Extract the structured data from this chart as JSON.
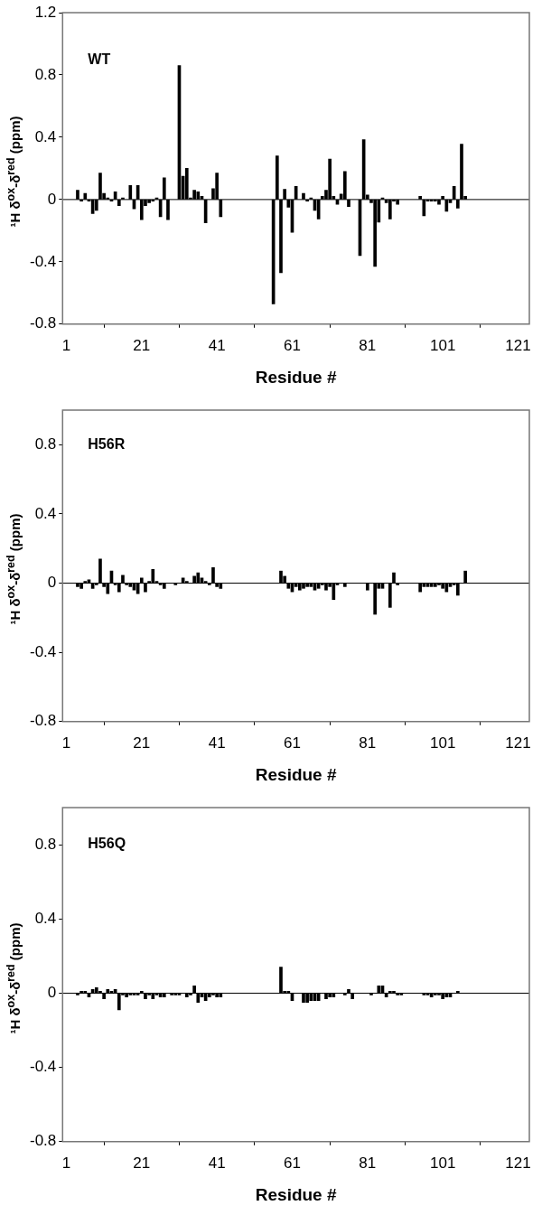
{
  "chart_data": [
    {
      "type": "bar",
      "title": "WT",
      "xlabel": "Residue #",
      "ylabel": "¹H δ$^{ox}$-δ$^{red}$ (ppm)",
      "color": "#000000",
      "grid": false,
      "legend": false,
      "ref_lines": [
        {
          "axis": "y",
          "value": 0,
          "color": "#000000"
        }
      ],
      "xlim": [
        0,
        124
      ],
      "xticks": [
        1,
        21,
        41,
        61,
        81,
        101,
        121
      ],
      "ylim": [
        -0.8,
        1.2
      ],
      "yticks": [
        -0.8,
        -0.4,
        0,
        0.4,
        0.8,
        1.2
      ],
      "x": [
        4,
        5,
        6,
        7,
        8,
        9,
        10,
        11,
        12,
        13,
        14,
        15,
        16,
        18,
        19,
        20,
        21,
        22,
        23,
        24,
        25,
        26,
        27,
        28,
        31,
        32,
        33,
        34,
        35,
        36,
        37,
        38,
        40,
        41,
        42,
        56,
        57,
        58,
        59,
        60,
        61,
        62,
        64,
        65,
        66,
        67,
        68,
        69,
        70,
        71,
        72,
        73,
        74,
        75,
        76,
        79,
        80,
        81,
        82,
        83,
        84,
        85,
        86,
        87,
        88,
        89,
        95,
        96,
        97,
        98,
        99,
        100,
        101,
        102,
        103,
        104,
        105,
        106,
        107
      ],
      "values": [
        0.06,
        -0.01,
        0.04,
        -0.01,
        -0.09,
        -0.07,
        0.17,
        0.04,
        0.01,
        -0.01,
        0.05,
        -0.04,
        0.01,
        0.09,
        -0.06,
        0.09,
        -0.13,
        -0.04,
        -0.02,
        -0.01,
        0.01,
        -0.11,
        0.14,
        -0.13,
        0.86,
        0.15,
        0.2,
        0.01,
        0.06,
        0.05,
        0.02,
        -0.15,
        0.07,
        0.17,
        -0.11,
        -0.67,
        0.28,
        -0.47,
        0.065,
        -0.05,
        -0.21,
        0.085,
        0.04,
        -0.01,
        0.01,
        -0.07,
        -0.125,
        0.02,
        0.06,
        0.26,
        0.02,
        -0.03,
        0.035,
        0.18,
        -0.045,
        -0.36,
        0.385,
        0.03,
        -0.02,
        -0.43,
        -0.145,
        0.01,
        -0.02,
        -0.125,
        -0.01,
        -0.03,
        0.02,
        -0.105,
        -0.01,
        -0.01,
        -0.01,
        -0.03,
        0.02,
        -0.075,
        -0.02,
        0.085,
        -0.055,
        0.355,
        0.02
      ]
    },
    {
      "type": "bar",
      "title": "H56R",
      "xlabel": "Residue #",
      "ylabel": "¹H δ$^{ox}$-δ$^{red}$ (ppm)",
      "color": "#000000",
      "grid": false,
      "legend": false,
      "ref_lines": [
        {
          "axis": "y",
          "value": 0,
          "color": "#000000"
        }
      ],
      "xlim": [
        0,
        124
      ],
      "xticks": [
        1,
        21,
        41,
        61,
        81,
        101,
        121
      ],
      "ylim": [
        -0.8,
        1.0
      ],
      "yticks": [
        -0.8,
        -0.4,
        0,
        0.4,
        0.8
      ],
      "x": [
        4,
        5,
        6,
        7,
        8,
        9,
        10,
        11,
        12,
        13,
        14,
        15,
        16,
        17,
        18,
        19,
        20,
        21,
        22,
        23,
        24,
        25,
        26,
        27,
        30,
        32,
        33,
        35,
        36,
        37,
        38,
        39,
        40,
        41,
        42,
        58,
        59,
        60,
        61,
        62,
        63,
        64,
        65,
        66,
        67,
        68,
        69,
        70,
        71,
        72,
        73,
        75,
        81,
        83,
        84,
        85,
        87,
        88,
        89,
        95,
        96,
        97,
        98,
        99,
        100,
        101,
        102,
        103,
        104,
        105,
        107
      ],
      "values": [
        -0.02,
        -0.03,
        0.01,
        0.02,
        -0.03,
        -0.01,
        0.14,
        -0.02,
        -0.06,
        0.07,
        -0.01,
        -0.05,
        0.045,
        -0.01,
        -0.02,
        -0.04,
        -0.06,
        0.03,
        -0.05,
        0.01,
        0.08,
        0.01,
        -0.01,
        -0.03,
        -0.01,
        0.03,
        0.01,
        0.04,
        0.06,
        0.03,
        0.01,
        -0.01,
        0.09,
        -0.02,
        -0.03,
        0.07,
        0.04,
        -0.03,
        -0.05,
        -0.02,
        -0.04,
        -0.03,
        -0.02,
        -0.02,
        -0.04,
        -0.03,
        -0.01,
        -0.04,
        -0.02,
        -0.095,
        -0.01,
        -0.02,
        -0.04,
        -0.18,
        -0.03,
        -0.03,
        -0.14,
        0.06,
        -0.01,
        -0.05,
        -0.02,
        -0.02,
        -0.02,
        -0.02,
        -0.01,
        -0.03,
        -0.05,
        -0.02,
        -0.01,
        -0.07,
        0.07
      ]
    },
    {
      "type": "bar",
      "title": "H56Q",
      "xlabel": "Residue #",
      "ylabel": "¹H δ$^{ox}$-δ$^{red}$ (ppm)",
      "color": "#000000",
      "grid": false,
      "legend": false,
      "ref_lines": [
        {
          "axis": "y",
          "value": 0,
          "color": "#000000"
        }
      ],
      "xlim": [
        0,
        124
      ],
      "xticks": [
        1,
        21,
        41,
        61,
        81,
        101,
        121
      ],
      "ylim": [
        -0.8,
        1.0
      ],
      "yticks": [
        -0.8,
        -0.4,
        0,
        0.4,
        0.8
      ],
      "x": [
        4,
        5,
        6,
        7,
        8,
        9,
        10,
        11,
        12,
        13,
        14,
        15,
        16,
        17,
        18,
        19,
        20,
        21,
        22,
        23,
        24,
        25,
        26,
        27,
        29,
        30,
        31,
        33,
        34,
        35,
        36,
        37,
        38,
        39,
        40,
        41,
        42,
        58,
        59,
        60,
        61,
        64,
        65,
        66,
        67,
        68,
        70,
        71,
        72,
        75,
        76,
        77,
        82,
        84,
        85,
        86,
        87,
        88,
        89,
        90,
        96,
        97,
        98,
        99,
        100,
        101,
        102,
        103,
        105
      ],
      "values": [
        -0.01,
        0.01,
        0.01,
        -0.02,
        0.02,
        0.03,
        0.01,
        -0.03,
        0.02,
        0.01,
        0.02,
        -0.09,
        -0.01,
        -0.02,
        -0.01,
        -0.01,
        -0.01,
        0.01,
        -0.03,
        -0.01,
        -0.03,
        -0.01,
        -0.02,
        -0.02,
        -0.01,
        -0.01,
        -0.01,
        -0.02,
        -0.01,
        0.04,
        -0.05,
        -0.02,
        -0.04,
        -0.02,
        -0.01,
        -0.02,
        -0.02,
        0.14,
        0.01,
        0.01,
        -0.04,
        -0.05,
        -0.05,
        -0.04,
        -0.04,
        -0.04,
        -0.03,
        -0.02,
        -0.02,
        -0.01,
        0.02,
        -0.03,
        -0.01,
        0.04,
        0.04,
        -0.02,
        0.01,
        0.01,
        -0.01,
        -0.01,
        -0.01,
        -0.01,
        -0.02,
        -0.01,
        -0.01,
        -0.03,
        -0.02,
        -0.02,
        0.01
      ]
    }
  ]
}
